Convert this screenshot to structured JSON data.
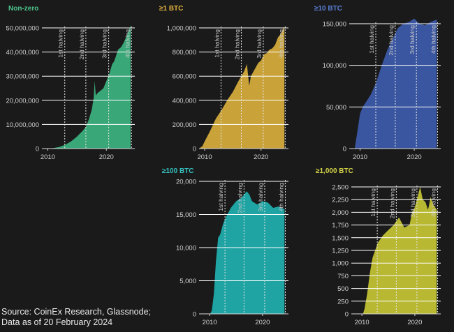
{
  "source": {
    "line1": "Source: CoinEx Research, Glassnode;",
    "line2": "Data as of 20 February 2024"
  },
  "chart_data": [
    {
      "type": "area",
      "title": "Non-zero",
      "color": "#3aa778",
      "title_color": "#4ec48c",
      "xlabel": "",
      "ylabel": "",
      "xlim": [
        2009,
        2024.5
      ],
      "ylim": [
        0,
        50000000
      ],
      "yticks": [
        0,
        10000000,
        20000000,
        30000000,
        40000000,
        50000000
      ],
      "ytick_labels": [
        "0",
        "10,000,000",
        "20,000,000",
        "30,000,000",
        "40,000,000",
        "50,000,000"
      ],
      "xticks": [
        2010,
        2020
      ],
      "xtick_labels": [
        "2010",
        "2020"
      ],
      "halvings": [
        {
          "label": "1st halving",
          "x": 2012.9
        },
        {
          "label": "2nd halving",
          "x": 2016.5
        },
        {
          "label": "3rd halving",
          "x": 2020.4
        },
        {
          "label": "4th halving",
          "x": 2024.3
        }
      ],
      "grid": true,
      "x": [
        2009.0,
        2010,
        2011,
        2012,
        2013,
        2014,
        2015,
        2016,
        2016.5,
        2017,
        2017.5,
        2017.85,
        2018.0,
        2018.2,
        2018.5,
        2019,
        2019.5,
        2020,
        2020.5,
        2021,
        2021.3,
        2021.6,
        2022,
        2022.5,
        2023,
        2023.5,
        2024.0,
        2024.15
      ],
      "y": [
        0,
        30000,
        200000,
        700000,
        1600000,
        3000000,
        5000000,
        7500000,
        9000000,
        12000000,
        16000000,
        21000000,
        28000000,
        22000000,
        23000000,
        24000000,
        25000000,
        28000000,
        31000000,
        35000000,
        36000000,
        38000000,
        41000000,
        42000000,
        44000000,
        47000000,
        50000000,
        51000000
      ]
    },
    {
      "type": "area",
      "title": "≥1 BTC",
      "color": "#c9a23a",
      "title_color": "#e3b43e",
      "xlabel": "",
      "ylabel": "",
      "xlim": [
        2009,
        2024.5
      ],
      "ylim": [
        0,
        1000000
      ],
      "yticks": [
        0,
        200000,
        400000,
        600000,
        800000,
        1000000
      ],
      "ytick_labels": [
        "0",
        "200,000",
        "400,000",
        "600,000",
        "800,000",
        "1,000,000"
      ],
      "xticks": [
        2010,
        2020
      ],
      "xtick_labels": [
        "2010",
        "2020"
      ],
      "halvings": [
        {
          "label": "1st halving",
          "x": 2012.9
        },
        {
          "label": "2nd halving",
          "x": 2016.5
        },
        {
          "label": "3rd halving",
          "x": 2020.4
        },
        {
          "label": "4th halving",
          "x": 2024.3
        }
      ],
      "grid": true,
      "x": [
        2009.0,
        2009.6,
        2010,
        2011,
        2012,
        2013,
        2014,
        2015,
        2016,
        2017,
        2017.5,
        2017.9,
        2018.2,
        2018.8,
        2019.5,
        2020,
        2020.5,
        2021,
        2021.5,
        2022,
        2022.5,
        2023,
        2023.5,
        2024.0,
        2024.15
      ],
      "y": [
        0,
        20000,
        60000,
        150000,
        250000,
        320000,
        400000,
        470000,
        560000,
        640000,
        700000,
        520000,
        600000,
        650000,
        710000,
        730000,
        780000,
        790000,
        820000,
        830000,
        860000,
        920000,
        950000,
        1000000,
        1010000
      ]
    },
    {
      "type": "area",
      "title": "≥10 BTC",
      "color": "#3a56a0",
      "title_color": "#5a7fd8",
      "xlabel": "",
      "ylabel": "",
      "xlim": [
        2008,
        2024.5
      ],
      "ylim": [
        0,
        150000
      ],
      "yticks": [
        0,
        50000,
        100000,
        150000
      ],
      "ytick_labels": [
        "0",
        "50,000",
        "100,000",
        "150,000"
      ],
      "xticks": [
        2010,
        2020
      ],
      "xtick_labels": [
        "2010",
        "2020"
      ],
      "halvings": [
        {
          "label": "1st halving",
          "x": 2012.9
        },
        {
          "label": "2nd halving",
          "x": 2016.5
        },
        {
          "label": "3rd halving",
          "x": 2020.4
        },
        {
          "label": "4th halving",
          "x": 2024.3
        }
      ],
      "grid": true,
      "x": [
        2009.0,
        2009.5,
        2010,
        2010.5,
        2011,
        2012,
        2013,
        2014,
        2015,
        2016,
        2017,
        2018,
        2019,
        2020,
        2021,
        2022,
        2023,
        2024.15
      ],
      "y": [
        0,
        20000,
        42000,
        50000,
        55000,
        65000,
        80000,
        100000,
        118000,
        132000,
        145000,
        150000,
        152000,
        156000,
        150000,
        148000,
        152000,
        155000
      ]
    },
    {
      "type": "area",
      "title": "≥100 BTC",
      "color": "#1fa3a3",
      "title_color": "#36c2c2",
      "xlabel": "",
      "ylabel": "",
      "xlim": [
        2008,
        2024.5
      ],
      "ylim": [
        0,
        20000
      ],
      "yticks": [
        0,
        5000,
        10000,
        15000,
        20000
      ],
      "ytick_labels": [
        "0",
        "5,000",
        "10,000",
        "15,000",
        "20,000"
      ],
      "xticks": [
        2010,
        2020
      ],
      "xtick_labels": [
        "2010",
        "2020"
      ],
      "halvings": [
        {
          "label": "1st halving",
          "x": 2012.9
        },
        {
          "label": "2nd halving",
          "x": 2016.5
        },
        {
          "label": "3rd halving",
          "x": 2020.4
        },
        {
          "label": "4th halving",
          "x": 2024.3
        }
      ],
      "grid": true,
      "x": [
        2010.1,
        2010.4,
        2010.8,
        2011.2,
        2011.6,
        2012,
        2012.5,
        2013,
        2014,
        2015,
        2016,
        2017,
        2017.5,
        2018,
        2019,
        2020,
        2021,
        2022,
        2023,
        2024.15
      ],
      "y": [
        0,
        500,
        3000,
        8000,
        11500,
        12000,
        13500,
        14500,
        16000,
        17000,
        17500,
        18500,
        18000,
        17000,
        16500,
        17000,
        16800,
        16000,
        16200,
        15800
      ]
    },
    {
      "type": "area",
      "title": "≥1,000 BTC",
      "color": "#b8b832",
      "title_color": "#d4d447",
      "xlabel": "",
      "ylabel": "",
      "xlim": [
        2008,
        2024.5
      ],
      "ylim": [
        0,
        2500
      ],
      "yticks": [
        0,
        250,
        500,
        750,
        1000,
        1250,
        1500,
        1750,
        2000,
        2250,
        2500
      ],
      "ytick_labels": [
        "0",
        "250",
        "500",
        "750",
        "1,000",
        "1,250",
        "1,500",
        "1,750",
        "2,000",
        "2,250",
        "2,500"
      ],
      "xticks": [
        2010,
        2020
      ],
      "xtick_labels": [
        "2010",
        "2020"
      ],
      "halvings": [
        {
          "label": "1st halving",
          "x": 2012.9
        },
        {
          "label": "2nd halving",
          "x": 2016.5
        },
        {
          "label": "3rd halving",
          "x": 2020.4
        },
        {
          "label": "4th halving",
          "x": 2024.3
        }
      ],
      "grid": true,
      "x": [
        2010.2,
        2010.5,
        2011,
        2011.5,
        2012,
        2013,
        2014,
        2015,
        2016,
        2017,
        2017.5,
        2018,
        2019,
        2019.5,
        2020,
        2020.5,
        2021,
        2021.5,
        2022,
        2022.5,
        2023,
        2023.5,
        2024.15
      ],
      "y": [
        0,
        100,
        400,
        800,
        1100,
        1400,
        1550,
        1650,
        1750,
        1900,
        1800,
        1700,
        1750,
        2000,
        2100,
        2300,
        2500,
        2250,
        2200,
        2050,
        2300,
        2150,
        2050
      ]
    }
  ]
}
